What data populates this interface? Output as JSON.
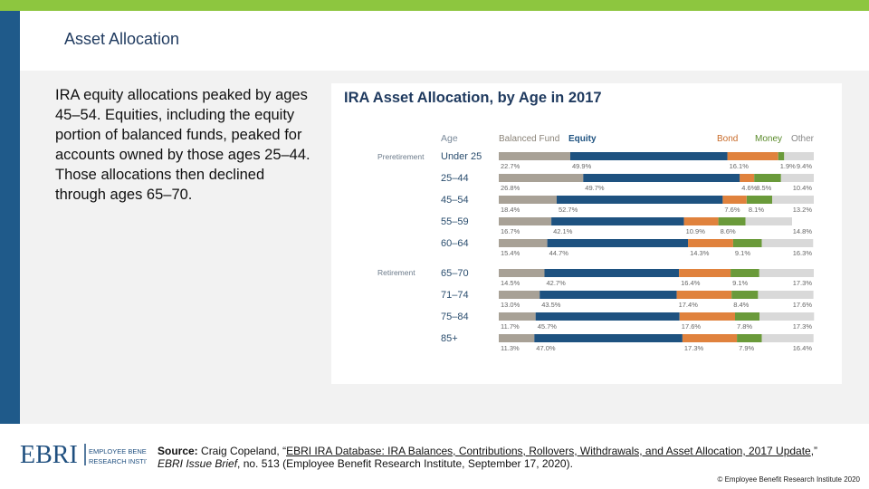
{
  "page": {
    "title": "Asset Allocation",
    "body_text": "IRA equity allocations peaked by ages 45–54. Equities, including the equity portion of balanced funds, peaked for accounts owned by those ages 25–44. Those allocations then declined through ages 65–70.",
    "logo_letters": "EBRI",
    "logo_line1": "EMPLOYEE BENEFIT",
    "logo_line2": "RESEARCH INSTITUTE",
    "source_label": "Source:",
    "source_author": " Craig Copeland, “",
    "source_link": "EBRI IRA Database: IRA Balances, Contributions, Rollovers, Withdrawals, and Asset Allocation, 2017 Update",
    "source_after_link": ",”",
    "source_journal": "EBRI Issue Brief",
    "source_rest": ", no. 513 (Employee Benefit Research Institute, September 17, 2020).",
    "copyright": "© Employee Benefit Research Institute 2020"
  },
  "colors": {
    "topbar": "#8dc63f",
    "sidebar": "#1f5a8a",
    "balanced": "#a8a196",
    "equity": "#1e5280",
    "bond": "#e0823d",
    "money": "#6a9a3a",
    "other": "#d9d9d9"
  },
  "chart_data": {
    "type": "bar",
    "orientation": "horizontal",
    "stacked": true,
    "title": "IRA Asset Allocation, by Age in 2017",
    "column_header": "Age",
    "groups": [
      {
        "label": "Preretirement",
        "rows": [
          "Under 25",
          "25–44",
          "45–54",
          "55–59",
          "60–64"
        ]
      },
      {
        "label": "Retirement",
        "rows": [
          "65–70",
          "71–74",
          "75–84",
          "85+"
        ]
      }
    ],
    "categories": [
      "Under 25",
      "25–44",
      "45–54",
      "55–59",
      "60–64",
      "65–70",
      "71–74",
      "75–84",
      "85+"
    ],
    "series": [
      {
        "name": "Balanced Fund",
        "values": [
          22.7,
          26.8,
          18.4,
          16.7,
          15.4,
          14.5,
          13.0,
          11.7,
          11.3
        ],
        "labels": [
          "22.7%",
          "26.8%",
          "18.4%",
          "16.7%",
          "15.4%",
          "14.5%",
          "13.0%",
          "11.7%",
          "11.3%"
        ]
      },
      {
        "name": "Equity",
        "values": [
          49.9,
          49.7,
          52.7,
          42.1,
          44.7,
          42.7,
          43.5,
          45.7,
          47.0
        ],
        "labels": [
          "49.9%",
          "49.7%",
          "52.7%",
          "42.1%",
          "44.7%",
          "42.7%",
          "43.5%",
          "45.7%",
          "47.0%"
        ]
      },
      {
        "name": "Bond",
        "values": [
          16.1,
          4.6,
          7.6,
          10.9,
          14.3,
          16.4,
          17.4,
          17.6,
          17.3
        ],
        "labels": [
          "16.1%",
          "4.6%",
          "7.6%",
          "10.9%",
          "14.3%",
          "16.4%",
          "17.4%",
          "17.6%",
          "17.3%"
        ]
      },
      {
        "name": "Money",
        "values": [
          1.9,
          8.5,
          8.1,
          8.6,
          9.1,
          9.1,
          8.4,
          7.8,
          7.9
        ],
        "labels": [
          "1.9%",
          "8.5%",
          "8.1%",
          "8.6%",
          "9.1%",
          "9.1%",
          "8.4%",
          "7.8%",
          "7.9%"
        ]
      },
      {
        "name": "Other",
        "values": [
          9.4,
          10.4,
          13.2,
          14.8,
          16.3,
          17.3,
          17.6,
          17.3,
          16.4
        ],
        "labels": [
          "9.4%",
          "10.4%",
          "13.2%",
          "14.8%",
          "16.3%",
          "17.3%",
          "17.6%",
          "17.3%",
          "16.4%"
        ]
      }
    ],
    "xlim": [
      0,
      100
    ]
  }
}
